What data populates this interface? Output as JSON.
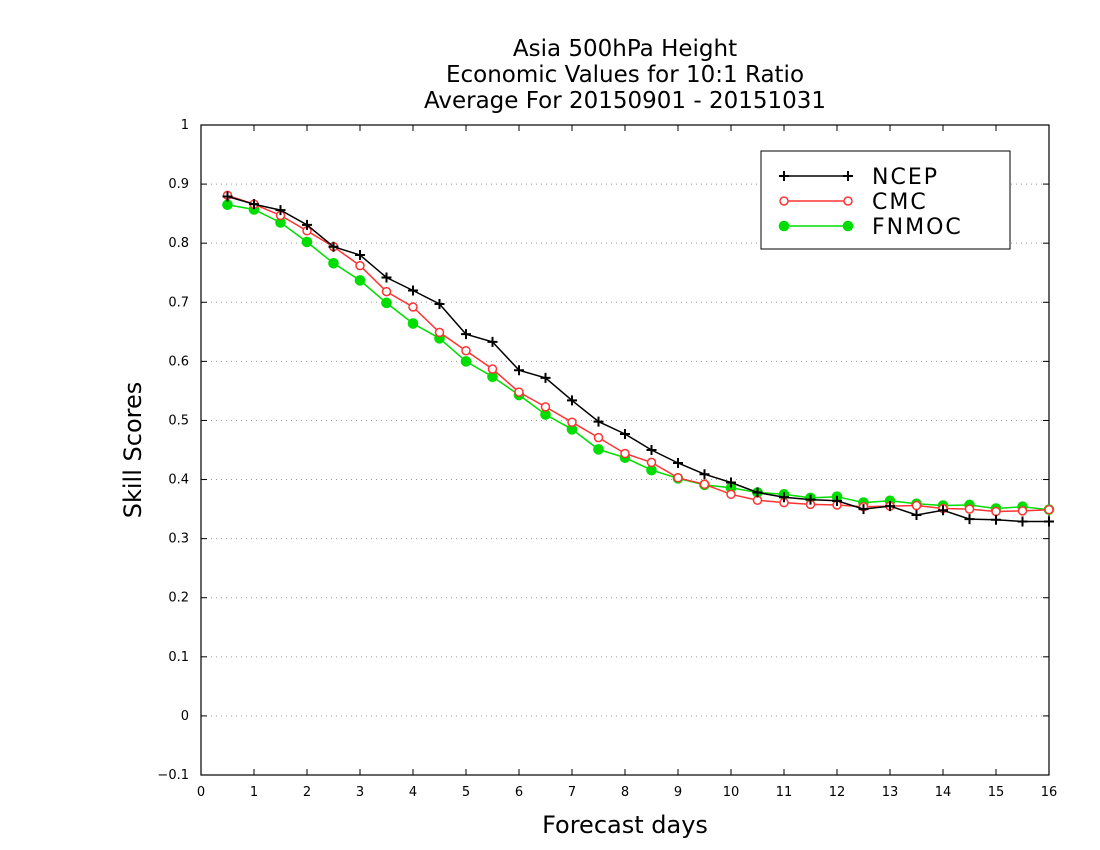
{
  "chart_data": {
    "type": "line",
    "title": [
      "Asia 500hPa Height",
      "Economic Values for 10:1 Ratio",
      "Average For 20150901 - 20151031"
    ],
    "xlabel": "Forecast days",
    "ylabel": "Skill Scores",
    "xlim": [
      0,
      16
    ],
    "ylim": [
      -0.1,
      1
    ],
    "xticks": [
      0,
      1,
      2,
      3,
      4,
      5,
      6,
      7,
      8,
      9,
      10,
      11,
      12,
      13,
      14,
      15,
      16
    ],
    "yticks": [
      -0.1,
      0,
      0.1,
      0.2,
      0.3,
      0.4,
      0.5,
      0.6,
      0.7,
      0.8,
      0.9,
      1
    ],
    "grid": "horizontal dotted",
    "legend_position": "top-right",
    "x": [
      0.5,
      1,
      1.5,
      2,
      2.5,
      3,
      3.5,
      4,
      4.5,
      5,
      5.5,
      6,
      6.5,
      7,
      7.5,
      8,
      8.5,
      9,
      9.5,
      10,
      10.5,
      11,
      11.5,
      12,
      12.5,
      13,
      13.5,
      14,
      14.5,
      15,
      15.5,
      16
    ],
    "series": [
      {
        "name": "NCEP",
        "color": "#000000",
        "marker": "plus",
        "values": [
          0.879,
          0.866,
          0.856,
          0.831,
          0.794,
          0.78,
          0.742,
          0.72,
          0.697,
          0.646,
          0.633,
          0.585,
          0.572,
          0.534,
          0.498,
          0.477,
          0.45,
          0.428,
          0.409,
          0.395,
          0.378,
          0.37,
          0.366,
          0.364,
          0.35,
          0.355,
          0.34,
          0.348,
          0.333,
          0.332,
          0.329,
          0.329
        ]
      },
      {
        "name": "CMC",
        "color": "#ff3333",
        "marker": "open-circle",
        "values": [
          0.881,
          0.866,
          0.847,
          0.821,
          0.794,
          0.762,
          0.718,
          0.692,
          0.649,
          0.618,
          0.587,
          0.548,
          0.523,
          0.497,
          0.471,
          0.444,
          0.429,
          0.403,
          0.392,
          0.375,
          0.365,
          0.361,
          0.358,
          0.357,
          0.354,
          0.355,
          0.356,
          0.351,
          0.35,
          0.346,
          0.347,
          0.349
        ]
      },
      {
        "name": "FNMOC",
        "color": "#00dd00",
        "marker": "filled-circle",
        "values": [
          0.865,
          0.857,
          0.835,
          0.802,
          0.766,
          0.737,
          0.699,
          0.664,
          0.639,
          0.6,
          0.574,
          0.543,
          0.51,
          0.485,
          0.451,
          0.437,
          0.416,
          0.402,
          0.391,
          0.386,
          0.378,
          0.375,
          0.369,
          0.371,
          0.361,
          0.364,
          0.359,
          0.356,
          0.357,
          0.351,
          0.354,
          0.349
        ]
      }
    ]
  }
}
